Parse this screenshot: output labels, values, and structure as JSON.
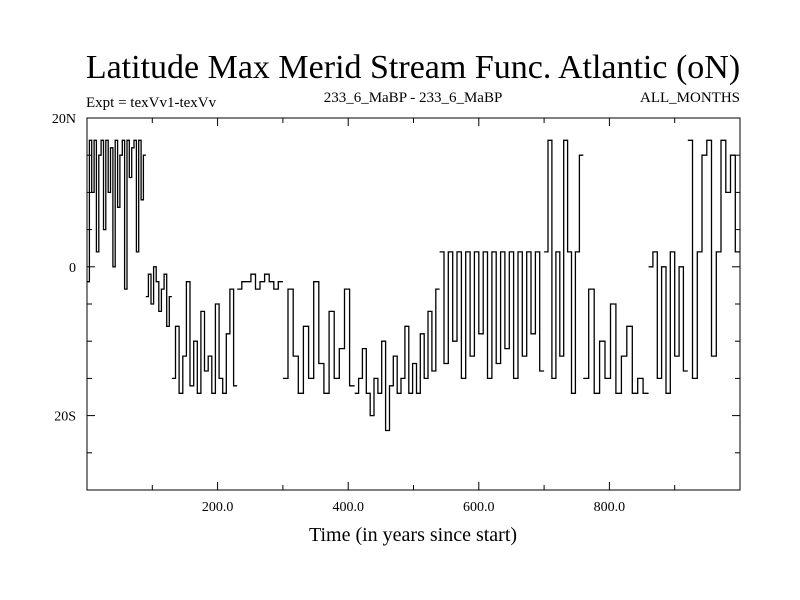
{
  "chart_data": {
    "type": "line",
    "title": "Latitude Max Merid Stream Func. Atlantic (oN)",
    "subtitle_left": "Expt = texVv1-texVv",
    "subtitle_center": "233_6_MaBP - 233_6_MaBP",
    "subtitle_right": "ALL_MONTHS",
    "xlabel": "Time (in years since start)",
    "ylabel": "",
    "xlim": [
      0,
      1000
    ],
    "ylim": [
      -30,
      20
    ],
    "xticks": [
      {
        "value": 200,
        "label": "200.0"
      },
      {
        "value": 400,
        "label": "400.0"
      },
      {
        "value": 600,
        "label": "600.0"
      },
      {
        "value": 800,
        "label": "800.0"
      }
    ],
    "yticks": [
      {
        "value": 20,
        "label": "20N"
      },
      {
        "value": 0,
        "label": "0"
      },
      {
        "value": -20,
        "label": "20S"
      }
    ],
    "segments": [
      {
        "start": 0,
        "end": 90,
        "values": [
          -2,
          17,
          10,
          17,
          2,
          15,
          17,
          5,
          17,
          10,
          16,
          0,
          17,
          8,
          15,
          17,
          -3,
          17,
          12,
          16,
          17,
          2,
          17,
          9,
          15
        ]
      },
      {
        "start": 90,
        "end": 130,
        "values": [
          -4,
          -1,
          -5,
          0,
          -2,
          -6,
          -3,
          -1,
          -8,
          -4
        ]
      },
      {
        "start": 130,
        "end": 230,
        "values": [
          -15,
          -8,
          -17,
          -12,
          -2,
          -16,
          -10,
          -17,
          -6,
          -14,
          -12,
          -17,
          -5,
          -15,
          -17,
          -9,
          -3,
          -16
        ]
      },
      {
        "start": 230,
        "end": 300,
        "values": [
          -3,
          -2,
          -2,
          -1,
          -3,
          -2,
          -1,
          -2,
          -3,
          -2
        ]
      },
      {
        "start": 300,
        "end": 410,
        "values": [
          -15,
          -3,
          -12,
          -17,
          -8,
          -15,
          -2,
          -13,
          -17,
          -6,
          -15,
          -11,
          -3,
          -16
        ]
      },
      {
        "start": 410,
        "end": 540,
        "values": [
          -17,
          -15,
          -11,
          -17,
          -20,
          -15,
          -17,
          -10,
          -22,
          -16,
          -12,
          -17,
          -15,
          -8,
          -17,
          -13,
          -17,
          -9,
          -15,
          -6,
          -14,
          -3
        ]
      },
      {
        "start": 540,
        "end": 700,
        "values": [
          2,
          -13,
          2,
          -10,
          2,
          -15,
          2,
          -12,
          2,
          -9,
          2,
          -15,
          2,
          -13,
          2,
          -11,
          2,
          -15,
          2,
          -12,
          2,
          -9,
          2,
          -14
        ]
      },
      {
        "start": 700,
        "end": 760,
        "values": [
          2,
          17,
          -15,
          2,
          -12,
          17,
          2,
          -17,
          2,
          15
        ]
      },
      {
        "start": 760,
        "end": 860,
        "values": [
          -15,
          -3,
          -17,
          -10,
          -15,
          -5,
          -17,
          -12,
          -8,
          -17,
          -15,
          -17
        ]
      },
      {
        "start": 860,
        "end": 920,
        "values": [
          0,
          2,
          -15,
          0,
          -17,
          2,
          -12,
          0,
          -14
        ]
      },
      {
        "start": 920,
        "end": 1000,
        "values": [
          17,
          -15,
          2,
          15,
          17,
          -12,
          2,
          17,
          10,
          15,
          2
        ]
      }
    ]
  }
}
